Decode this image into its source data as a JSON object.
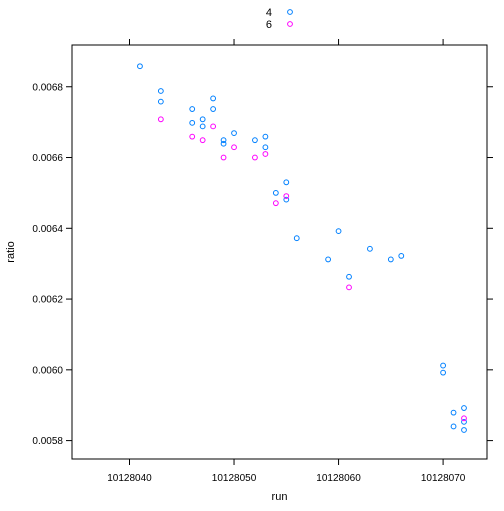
{
  "chart_data": {
    "type": "scatter",
    "xlabel": "run",
    "ylabel": "ratio",
    "xlim": [
      10128034.5,
      10128074.2
    ],
    "ylim": [
      0.005748,
      0.006918
    ],
    "x_ticks": [
      {
        "value": 10128040,
        "label": "10128040"
      },
      {
        "value": 10128050,
        "label": "10128050"
      },
      {
        "value": 10128060,
        "label": "10128060"
      },
      {
        "value": 10128070,
        "label": "10128070"
      }
    ],
    "y_ticks": [
      {
        "value": 0.0058,
        "label": "0.0058"
      },
      {
        "value": 0.006,
        "label": "0.0060"
      },
      {
        "value": 0.0062,
        "label": "0.0062"
      },
      {
        "value": 0.0064,
        "label": "0.0064"
      },
      {
        "value": 0.0066,
        "label": "0.0066"
      },
      {
        "value": 0.0068,
        "label": "0.0068"
      }
    ],
    "legend_position": "top",
    "series": [
      {
        "name": "4",
        "color": "#0080ff",
        "points": [
          [
            10128041,
            0.006858
          ],
          [
            10128043,
            0.006788
          ],
          [
            10128043,
            0.006758
          ],
          [
            10128046,
            0.006737
          ],
          [
            10128046,
            0.006698
          ],
          [
            10128047,
            0.006708
          ],
          [
            10128047,
            0.006688
          ],
          [
            10128048,
            0.006767
          ],
          [
            10128048,
            0.006737
          ],
          [
            10128049,
            0.006649
          ],
          [
            10128049,
            0.006639
          ],
          [
            10128050,
            0.006669
          ],
          [
            10128052,
            0.006649
          ],
          [
            10128053,
            0.006659
          ],
          [
            10128053,
            0.006629
          ],
          [
            10128054,
            0.0065
          ],
          [
            10128055,
            0.00653
          ],
          [
            10128055,
            0.006481
          ],
          [
            10128056,
            0.006372
          ],
          [
            10128059,
            0.006312
          ],
          [
            10128060,
            0.006392
          ],
          [
            10128061,
            0.006263
          ],
          [
            10128063,
            0.006342
          ],
          [
            10128065,
            0.006312
          ],
          [
            10128066,
            0.006322
          ],
          [
            10128070,
            0.006012
          ],
          [
            10128070,
            0.005992
          ],
          [
            10128071,
            0.005879
          ],
          [
            10128071,
            0.00584
          ],
          [
            10128072,
            0.005892
          ],
          [
            10128072,
            0.005853
          ],
          [
            10128072,
            0.00583
          ]
        ]
      },
      {
        "name": "6",
        "color": "#ff00ff",
        "points": [
          [
            10128043,
            0.006708
          ],
          [
            10128046,
            0.006659
          ],
          [
            10128047,
            0.006649
          ],
          [
            10128048,
            0.006688
          ],
          [
            10128049,
            0.0066
          ],
          [
            10128050,
            0.006629
          ],
          [
            10128052,
            0.0066
          ],
          [
            10128053,
            0.00661
          ],
          [
            10128054,
            0.006471
          ],
          [
            10128055,
            0.006491
          ],
          [
            10128061,
            0.006233
          ],
          [
            10128072,
            0.005863
          ]
        ]
      }
    ]
  }
}
